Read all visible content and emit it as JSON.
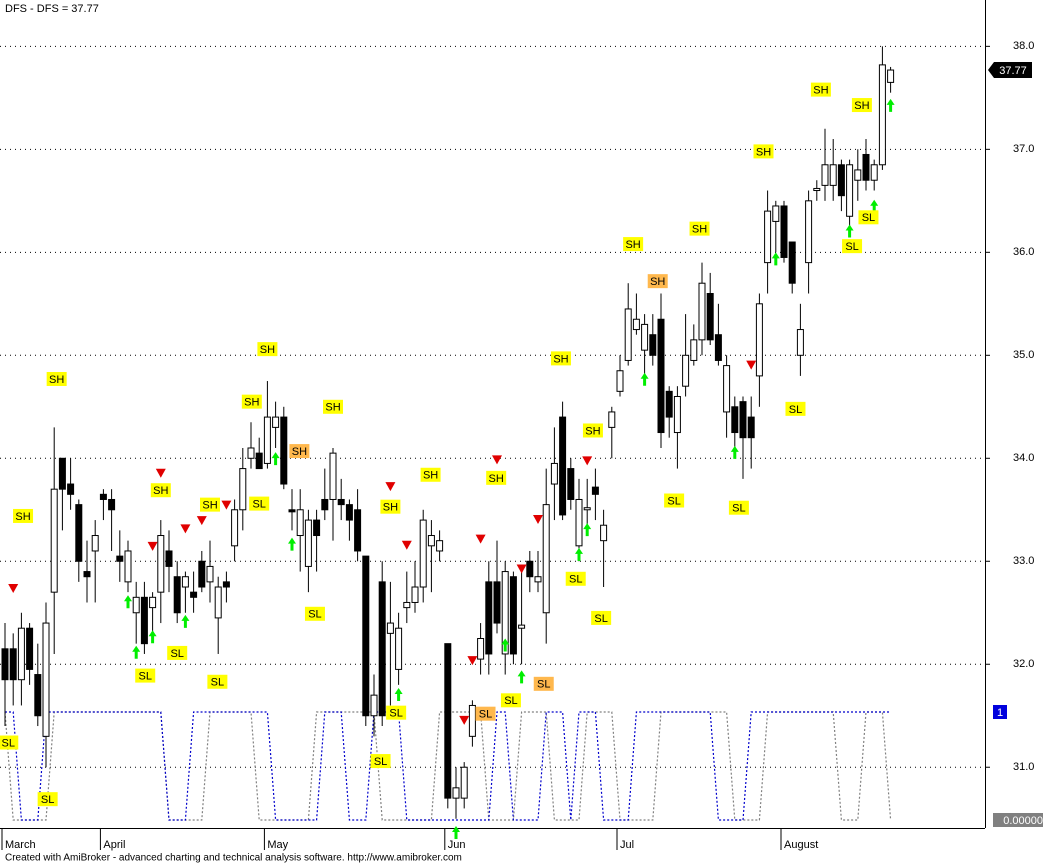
{
  "chart_data": {
    "type": "candlestick",
    "title": "DFS - DFS = 37.77",
    "footer": "Created with AmiBroker - advanced charting and technical analysis software. http://www.amibroker.com",
    "open": [
      32.15,
      32.15,
      31.85,
      32.35,
      31.9,
      31.3,
      32.7,
      34.0,
      33.75,
      33.55,
      32.9,
      33.1,
      33.65,
      33.6,
      33.05,
      32.8,
      32.5,
      32.65,
      32.55,
      32.7,
      33.1,
      32.85,
      32.75,
      32.7,
      33.0,
      32.8,
      32.45,
      32.8,
      33.15,
      33.5,
      34.0,
      34.05,
      33.95,
      34.3,
      34.4,
      33.5,
      33.25,
      32.95,
      33.4,
      33.6,
      33.6,
      33.6,
      33.55,
      33.5,
      33.05,
      31.5,
      32.8,
      32.3,
      31.95,
      32.55,
      32.6,
      32.75,
      33.15,
      33.1,
      32.2,
      30.7,
      30.7,
      31.3,
      32.05,
      32.8,
      32.8,
      32.1,
      32.85,
      32.35,
      33.0,
      32.8,
      32.5,
      33.75,
      34.4,
      33.9,
      33.15,
      33.5,
      33.72,
      33.2,
      34.3,
      34.65,
      34.95,
      35.25,
      35.05,
      35.2,
      35.35,
      34.65,
      34.25,
      34.7,
      34.95,
      35.15,
      35.6,
      35.2,
      34.45,
      34.5,
      34.55,
      34.4,
      34.8,
      35.9,
      36.3,
      36.45,
      36.1,
      35.0,
      35.9,
      36.6,
      36.65,
      36.65,
      36.85,
      36.35,
      36.7,
      36.95,
      36.7,
      36.85,
      37.65
    ],
    "high": [
      32.4,
      32.3,
      32.5,
      32.4,
      32.2,
      32.6,
      34.3,
      34.0,
      34.0,
      33.6,
      33.2,
      33.4,
      33.7,
      33.7,
      33.3,
      33.2,
      32.8,
      32.8,
      32.7,
      33.4,
      33.3,
      33.0,
      32.9,
      32.9,
      33.1,
      33.2,
      32.85,
      32.9,
      33.6,
      34.1,
      34.35,
      34.2,
      34.75,
      34.55,
      34.5,
      33.7,
      33.7,
      33.5,
      33.5,
      33.9,
      34.1,
      33.8,
      33.6,
      33.7,
      33.05,
      31.9,
      33.0,
      32.8,
      32.5,
      32.9,
      33.0,
      33.5,
      33.4,
      33.3,
      32.2,
      31.0,
      31.05,
      31.65,
      32.4,
      33.0,
      33.2,
      33.0,
      32.9,
      32.9,
      33.1,
      33.1,
      33.9,
      34.3,
      34.55,
      34.0,
      33.8,
      33.8,
      33.9,
      33.5,
      34.5,
      35.0,
      35.7,
      35.6,
      35.4,
      35.4,
      35.6,
      34.7,
      34.7,
      35.4,
      35.3,
      35.9,
      35.8,
      35.5,
      35.0,
      34.6,
      34.6,
      34.6,
      35.6,
      36.6,
      36.5,
      36.5,
      36.1,
      35.5,
      36.6,
      36.7,
      37.2,
      37.1,
      36.9,
      36.9,
      37.0,
      37.1,
      36.9,
      38.0,
      37.8
    ],
    "low": [
      31.4,
      31.6,
      31.6,
      31.8,
      31.4,
      31.0,
      32.1,
      33.3,
      33.5,
      32.8,
      32.6,
      32.6,
      33.4,
      33.1,
      32.8,
      32.7,
      32.2,
      32.1,
      32.3,
      32.4,
      32.7,
      32.4,
      32.5,
      32.5,
      32.7,
      32.6,
      32.1,
      32.6,
      33.0,
      33.3,
      33.9,
      33.9,
      33.9,
      34.1,
      33.7,
      33.3,
      32.9,
      32.7,
      32.9,
      33.4,
      33.2,
      33.4,
      33.2,
      33.0,
      31.4,
      31.3,
      31.4,
      31.6,
      31.8,
      32.4,
      32.5,
      32.6,
      32.7,
      33.0,
      30.6,
      30.5,
      30.6,
      31.2,
      31.9,
      31.9,
      32.3,
      31.9,
      32.0,
      32.0,
      32.7,
      32.7,
      32.2,
      33.4,
      33.4,
      33.5,
      33.0,
      33.3,
      33.4,
      32.75,
      34.0,
      34.6,
      34.9,
      35.2,
      34.8,
      34.9,
      34.1,
      34.2,
      33.9,
      34.6,
      34.9,
      35.0,
      35.1,
      34.9,
      34.2,
      34.1,
      33.8,
      33.9,
      34.5,
      35.6,
      36.0,
      35.9,
      35.6,
      34.8,
      35.6,
      36.5,
      36.5,
      36.5,
      36.4,
      36.2,
      36.5,
      36.6,
      36.6,
      36.8,
      37.55
    ],
    "close": [
      31.85,
      31.85,
      32.35,
      31.95,
      31.5,
      32.4,
      33.7,
      33.7,
      33.65,
      33.0,
      32.85,
      33.25,
      33.6,
      33.5,
      33.0,
      33.1,
      32.65,
      32.2,
      32.65,
      33.25,
      32.95,
      32.5,
      32.85,
      32.65,
      32.75,
      32.95,
      32.75,
      32.75,
      33.5,
      33.9,
      34.1,
      33.9,
      34.4,
      34.4,
      33.75,
      33.48,
      33.5,
      33.4,
      33.25,
      33.5,
      34.05,
      33.55,
      33.4,
      33.1,
      31.5,
      31.7,
      31.5,
      32.4,
      32.35,
      32.6,
      32.75,
      33.4,
      33.25,
      33.2,
      30.7,
      30.8,
      31.0,
      31.6,
      32.25,
      32.1,
      32.4,
      32.9,
      32.1,
      32.38,
      32.85,
      32.85,
      33.55,
      33.95,
      33.45,
      33.6,
      33.6,
      33.52,
      33.65,
      33.35,
      34.45,
      34.85,
      35.45,
      35.35,
      35.3,
      35.0,
      34.25,
      34.4,
      34.6,
      35.0,
      35.15,
      35.7,
      35.15,
      34.95,
      34.9,
      34.25,
      34.2,
      34.2,
      35.5,
      36.4,
      36.45,
      35.95,
      35.7,
      35.25,
      36.5,
      36.62,
      36.85,
      36.85,
      36.55,
      36.85,
      36.8,
      36.7,
      36.85,
      37.82,
      37.77
    ],
    "ylim": [
      30.41,
      38.45
    ],
    "yticks": [
      {
        "value": 31,
        "label": "31.0"
      },
      {
        "value": 32,
        "label": "32.0"
      },
      {
        "value": 33,
        "label": "33.0"
      },
      {
        "value": 34,
        "label": "34.0"
      },
      {
        "value": 35,
        "label": "35.0"
      },
      {
        "value": 36,
        "label": "36.0"
      },
      {
        "value": 37,
        "label": "37.0"
      },
      {
        "value": 38,
        "label": "38.0"
      }
    ],
    "xticks": [
      {
        "value": 0,
        "label": "March"
      },
      {
        "value": 12,
        "label": "April"
      },
      {
        "value": 32,
        "label": "May"
      },
      {
        "value": 54,
        "label": "Jun"
      },
      {
        "value": 75,
        "label": "Jul"
      },
      {
        "value": 95,
        "label": "August"
      }
    ],
    "grid": true,
    "series": [
      {
        "color": "#808080",
        "axis": "y2",
        "values": [
          1,
          0,
          0,
          0,
          0,
          0,
          1,
          1,
          1,
          1,
          1,
          1,
          1,
          1,
          1,
          1,
          1,
          1,
          1,
          1,
          0,
          0,
          0,
          0,
          0,
          1,
          1,
          1,
          1,
          1,
          1,
          0,
          0,
          0,
          0,
          0,
          0,
          0,
          1,
          1,
          1,
          1,
          1,
          1,
          1,
          1,
          0,
          0,
          0,
          0,
          0,
          0,
          0,
          1,
          1,
          1,
          1,
          1,
          1,
          0,
          0,
          0,
          0,
          1,
          1,
          1,
          1,
          0,
          0,
          0,
          0,
          1,
          1,
          1,
          1,
          0,
          0,
          0,
          0,
          0,
          1,
          1,
          1,
          1,
          1,
          1,
          1,
          1,
          1,
          0,
          0,
          0,
          0,
          1,
          1,
          1,
          1,
          1,
          1,
          1,
          1,
          1,
          0,
          0,
          0,
          1,
          1,
          1,
          0
        ]
      },
      {
        "color": "#0000cc",
        "axis": "y2",
        "values": [
          1,
          1,
          0,
          0,
          0,
          1,
          1,
          1,
          1,
          1,
          1,
          1,
          1,
          1,
          1,
          1,
          1,
          1,
          1,
          1,
          0,
          0,
          0,
          1,
          1,
          1,
          1,
          1,
          1,
          1,
          1,
          1,
          1,
          0,
          0,
          0,
          0,
          0,
          0,
          1,
          1,
          1,
          0,
          0,
          0,
          1,
          1,
          1,
          1,
          0,
          0,
          0,
          0,
          0,
          0,
          0,
          0,
          0,
          0,
          0,
          1,
          1,
          0,
          0,
          0,
          0,
          1,
          1,
          1,
          0,
          1,
          1,
          1,
          0,
          0,
          0,
          0,
          1,
          1,
          1,
          1,
          1,
          1,
          1,
          1,
          1,
          1,
          0,
          0,
          0,
          0,
          1,
          1,
          1,
          1,
          1,
          1,
          1,
          1,
          1,
          1,
          1,
          1,
          1,
          1,
          1,
          1,
          1,
          1
        ]
      }
    ],
    "y2lim": [
      0,
      1
    ],
    "y2ticks": [
      {
        "value": 0,
        "label": "0.00000"
      },
      1
    ],
    "annotations": [
      {
        "text": "SH",
        "x": 6.3,
        "y": 34.77,
        "color": "#ffff00"
      },
      {
        "text": "SH",
        "x": 2.2,
        "y": 33.44,
        "color": "#ffff00"
      },
      {
        "text": "SL",
        "x": 0.4,
        "y": 31.24,
        "color": "#ffff00"
      },
      {
        "text": "SL",
        "x": 5.2,
        "y": 30.69,
        "color": "#ffff00"
      },
      {
        "text": "SH",
        "x": 19,
        "y": 33.69,
        "color": "#ffff00"
      },
      {
        "text": "SL",
        "x": 17.1,
        "y": 31.89,
        "color": "#ffff00"
      },
      {
        "text": "SL",
        "x": 21,
        "y": 32.11,
        "color": "#ffff00"
      },
      {
        "text": "SL",
        "x": 25.9,
        "y": 31.83,
        "color": "#ffff00"
      },
      {
        "text": "SH",
        "x": 25,
        "y": 33.55,
        "color": "#ffff00"
      },
      {
        "text": "SH",
        "x": 30.1,
        "y": 34.55,
        "color": "#ffff00"
      },
      {
        "text": "SH",
        "x": 32,
        "y": 35.06,
        "color": "#ffff00"
      },
      {
        "text": "SL",
        "x": 31,
        "y": 33.56,
        "color": "#ffff00"
      },
      {
        "text": "SH",
        "x": 35.9,
        "y": 34.07,
        "color": "#ffb84d"
      },
      {
        "text": "SH",
        "x": 40,
        "y": 34.5,
        "color": "#ffff00"
      },
      {
        "text": "SL",
        "x": 37.8,
        "y": 32.49,
        "color": "#ffff00"
      },
      {
        "text": "SH",
        "x": 47,
        "y": 33.53,
        "color": "#ffff00"
      },
      {
        "text": "SH",
        "x": 51.9,
        "y": 33.84,
        "color": "#ffff00"
      },
      {
        "text": "SL",
        "x": 45.8,
        "y": 31.06,
        "color": "#ffff00"
      },
      {
        "text": "SL",
        "x": 47.7,
        "y": 31.53,
        "color": "#ffff00"
      },
      {
        "text": "SH",
        "x": 59.9,
        "y": 33.81,
        "color": "#ffff00"
      },
      {
        "text": "SL",
        "x": 58.6,
        "y": 31.52,
        "color": "#ffb84d"
      },
      {
        "text": "SL",
        "x": 61.7,
        "y": 31.65,
        "color": "#ffff00"
      },
      {
        "text": "SL",
        "x": 65.7,
        "y": 31.81,
        "color": "#ffb84d"
      },
      {
        "text": "SH",
        "x": 67.8,
        "y": 34.97,
        "color": "#ffff00"
      },
      {
        "text": "SH",
        "x": 71.7,
        "y": 34.27,
        "color": "#ffff00"
      },
      {
        "text": "SL",
        "x": 69.6,
        "y": 32.83,
        "color": "#ffff00"
      },
      {
        "text": "SL",
        "x": 72.7,
        "y": 32.45,
        "color": "#ffff00"
      },
      {
        "text": "SH",
        "x": 76.6,
        "y": 36.08,
        "color": "#ffff00"
      },
      {
        "text": "SH",
        "x": 79.6,
        "y": 35.72,
        "color": "#ffb84d"
      },
      {
        "text": "SH",
        "x": 84.7,
        "y": 36.23,
        "color": "#ffff00"
      },
      {
        "text": "SL",
        "x": 81.6,
        "y": 33.59,
        "color": "#ffff00"
      },
      {
        "text": "SL",
        "x": 89.5,
        "y": 33.52,
        "color": "#ffff00"
      },
      {
        "text": "SH",
        "x": 92.5,
        "y": 36.98,
        "color": "#ffff00"
      },
      {
        "text": "SL",
        "x": 96.4,
        "y": 34.48,
        "color": "#ffff00"
      },
      {
        "text": "SH",
        "x": 99.5,
        "y": 37.58,
        "color": "#ffff00"
      },
      {
        "text": "SH",
        "x": 104.5,
        "y": 37.43,
        "color": "#ffff00"
      },
      {
        "text": "SL",
        "x": 103.3,
        "y": 36.06,
        "color": "#ffff00"
      },
      {
        "text": "SL",
        "x": 105.3,
        "y": 36.34,
        "color": "#ffff00"
      }
    ],
    "buy_signals": [
      {
        "x": 15,
        "y": 32.67
      },
      {
        "x": 16,
        "y": 32.18
      },
      {
        "x": 18,
        "y": 32.33
      },
      {
        "x": 22,
        "y": 32.48
      },
      {
        "x": 33,
        "y": 34.06
      },
      {
        "x": 35,
        "y": 33.23
      },
      {
        "x": 48,
        "y": 31.77
      },
      {
        "x": 55,
        "y": 30.43
      },
      {
        "x": 61,
        "y": 32.25
      },
      {
        "x": 63,
        "y": 31.94
      },
      {
        "x": 70,
        "y": 33.13
      },
      {
        "x": 71,
        "y": 33.37
      },
      {
        "x": 78,
        "y": 34.83
      },
      {
        "x": 89,
        "y": 34.12
      },
      {
        "x": 94,
        "y": 36.0
      },
      {
        "x": 103,
        "y": 36.27
      },
      {
        "x": 106,
        "y": 36.51
      },
      {
        "x": 108,
        "y": 37.49
      }
    ],
    "sell_signals": [
      {
        "x": 1,
        "y": 32.74
      },
      {
        "x": 19,
        "y": 33.86
      },
      {
        "x": 18,
        "y": 33.15
      },
      {
        "x": 22,
        "y": 33.32
      },
      {
        "x": 24,
        "y": 33.4
      },
      {
        "x": 27,
        "y": 33.55
      },
      {
        "x": 47,
        "y": 33.73
      },
      {
        "x": 49,
        "y": 33.16
      },
      {
        "x": 56,
        "y": 31.46
      },
      {
        "x": 57,
        "y": 32.04
      },
      {
        "x": 58,
        "y": 33.22
      },
      {
        "x": 60,
        "y": 33.99
      },
      {
        "x": 63,
        "y": 32.93
      },
      {
        "x": 65,
        "y": 33.41
      },
      {
        "x": 71,
        "y": 33.98
      },
      {
        "x": 91,
        "y": 34.91
      }
    ]
  }
}
